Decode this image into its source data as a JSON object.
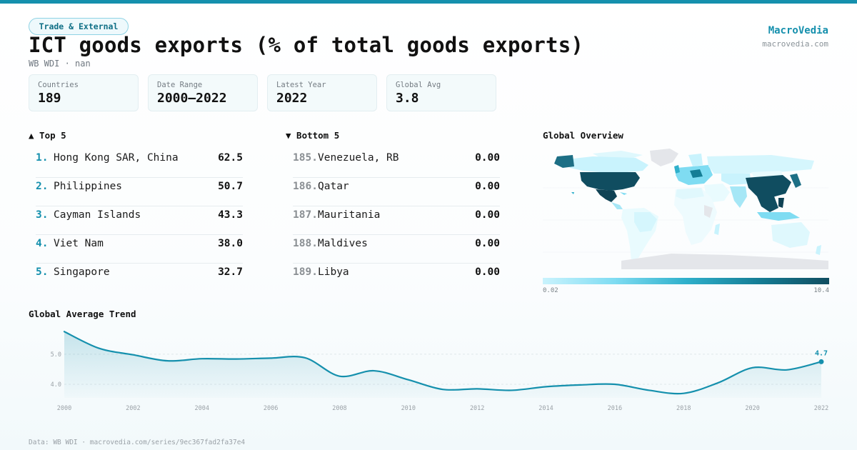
{
  "header": {
    "tag": "Trade & External",
    "title": "ICT goods exports (% of total goods exports)",
    "subtitle": "WB WDI · nan",
    "brand": "MacroVedia",
    "brand_url": "macrovedia.com"
  },
  "stats": [
    {
      "label": "Countries",
      "value": "189"
    },
    {
      "label": "Date Range",
      "value": "2000–2022"
    },
    {
      "label": "Latest Year",
      "value": "2022"
    },
    {
      "label": "Global Avg",
      "value": "3.8"
    }
  ],
  "top5": {
    "heading": "▲ Top 5",
    "rows": [
      {
        "rank": "1.",
        "name": "Hong Kong SAR, China",
        "value": "62.5"
      },
      {
        "rank": "2.",
        "name": "Philippines",
        "value": "50.7"
      },
      {
        "rank": "3.",
        "name": "Cayman Islands",
        "value": "43.3"
      },
      {
        "rank": "4.",
        "name": "Viet Nam",
        "value": "38.0"
      },
      {
        "rank": "5.",
        "name": "Singapore",
        "value": "32.7"
      }
    ]
  },
  "bottom5": {
    "heading": "▼ Bottom 5",
    "rows": [
      {
        "rank": "185.",
        "name": "Venezuela, RB",
        "value": "0.00"
      },
      {
        "rank": "186.",
        "name": "Qatar",
        "value": "0.00"
      },
      {
        "rank": "187.",
        "name": "Mauritania",
        "value": "0.00"
      },
      {
        "rank": "188.",
        "name": "Maldives",
        "value": "0.00"
      },
      {
        "rank": "189.",
        "name": "Libya",
        "value": "0.00"
      }
    ]
  },
  "map": {
    "heading": "Global Overview",
    "legend_min": "0.02",
    "legend_max": "10.4",
    "colors": {
      "low": "#c9f3fd",
      "mid": "#2fb0cb",
      "high": "#104d60",
      "nodata": "#e4e6ea"
    }
  },
  "trend": {
    "heading": "Global Average Trend",
    "last_label": "4.7"
  },
  "chart_data": {
    "type": "area",
    "title": "Global Average Trend",
    "xlabel": "",
    "ylabel": "",
    "x": [
      2000,
      2001,
      2002,
      2003,
      2004,
      2005,
      2006,
      2007,
      2008,
      2009,
      2010,
      2011,
      2012,
      2013,
      2014,
      2015,
      2016,
      2017,
      2018,
      2019,
      2020,
      2021,
      2022
    ],
    "values": [
      5.75,
      5.2,
      4.98,
      4.78,
      4.85,
      4.84,
      4.87,
      4.88,
      4.27,
      4.45,
      4.15,
      3.83,
      3.85,
      3.8,
      3.92,
      3.98,
      4.0,
      3.8,
      3.7,
      4.05,
      4.55,
      4.48,
      4.75
    ],
    "yticks": [
      4.0,
      5.0
    ],
    "xticks": [
      2000,
      2002,
      2004,
      2006,
      2008,
      2010,
      2012,
      2014,
      2016,
      2018,
      2020,
      2022
    ],
    "ylim": [
      3.55,
      5.78
    ],
    "color": "#1590ad",
    "grid": true
  },
  "footer": "Data: WB WDI · macrovedia.com/series/9ec367fad2fa37e4"
}
